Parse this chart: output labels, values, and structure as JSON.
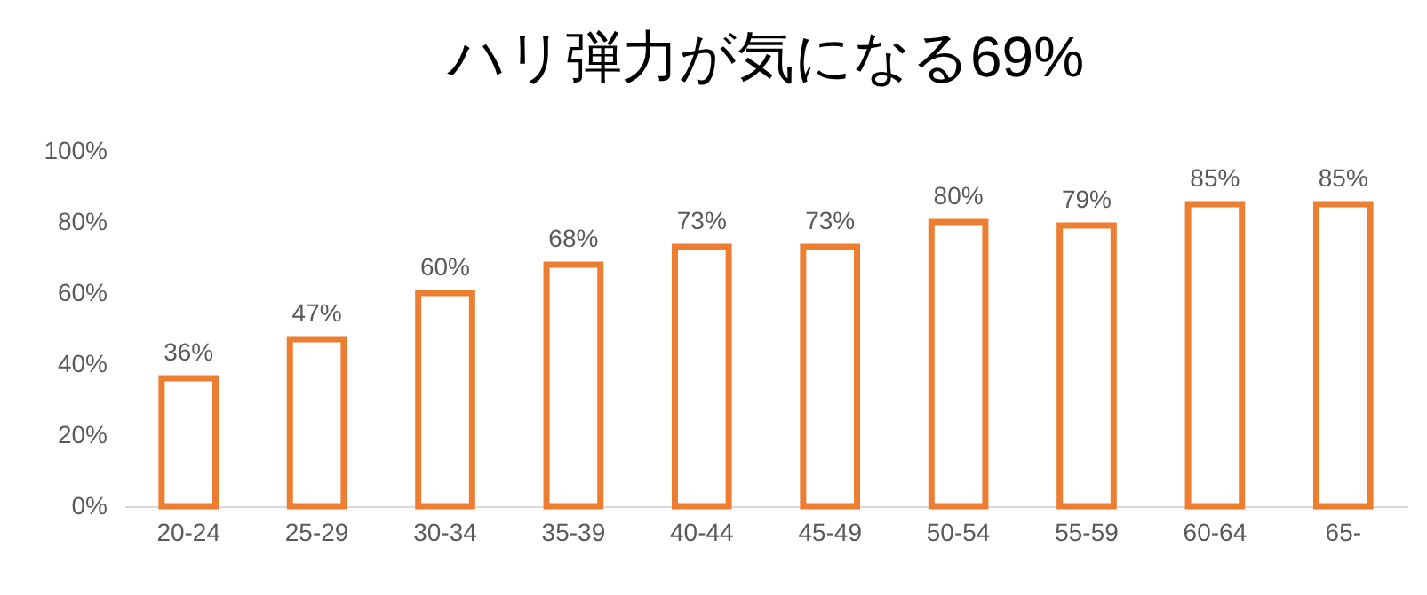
{
  "chart_data": {
    "type": "bar",
    "title": "ハリ弾力が気になる69%",
    "categories": [
      "20-24",
      "25-29",
      "30-34",
      "35-39",
      "40-44",
      "45-49",
      "50-54",
      "55-59",
      "60-64",
      "65-"
    ],
    "values": [
      36,
      47,
      60,
      68,
      73,
      73,
      80,
      79,
      85,
      85
    ],
    "value_labels": [
      "36%",
      "47%",
      "60%",
      "68%",
      "73%",
      "73%",
      "80%",
      "79%",
      "85%",
      "85%"
    ],
    "color": "#ed7d31",
    "ylim": [
      0,
      100
    ],
    "yticks": [
      {
        "value": 0,
        "label": "0%"
      },
      {
        "value": 20,
        "label": "20%"
      },
      {
        "value": 40,
        "label": "40%"
      },
      {
        "value": 60,
        "label": "60%"
      },
      {
        "value": 80,
        "label": "80%"
      },
      {
        "value": 100,
        "label": "100%"
      }
    ],
    "grid": false
  }
}
